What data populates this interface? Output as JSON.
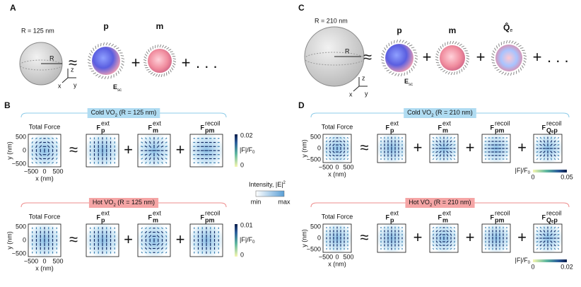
{
  "A": {
    "label": "A",
    "radius": "R = 125 nm",
    "R": "R",
    "approx": "≈",
    "plus": "+",
    "ellipsis": ". . .",
    "axes": {
      "z": "z",
      "x": "x",
      "y": "y"
    },
    "multipoles": [
      "p",
      "m"
    ],
    "field": {
      "symbol": "E",
      "sub": "sc"
    }
  },
  "C": {
    "label": "C",
    "radius": "R = 210 nm",
    "R": "R",
    "approx": "≈",
    "plus": "+",
    "ellipsis": ". . .",
    "axes": {
      "z": "z",
      "x": "x",
      "y": "y"
    },
    "multipoles": [
      "p",
      "m"
    ],
    "field": {
      "symbol": "E",
      "sub": "sc"
    },
    "quadrupole": {
      "symbol": "Q̂",
      "sub": "e"
    }
  },
  "B": {
    "label": "B",
    "F": "F",
    "approx": "≈",
    "plus": "+",
    "ylabel": "y (nm)",
    "xlabel": "x (nm)",
    "yticks": [
      "500",
      "0",
      "−500"
    ],
    "xticks": [
      "−500",
      "0",
      "500"
    ],
    "intensity": {
      "label": "Intensity, |E|",
      "sup": "2",
      "min": "min",
      "max": "max"
    },
    "rows": [
      {
        "state": {
          "text": "Cold VO",
          "sub": "2",
          "suffix": " (R = 125 nm)"
        },
        "total": "Total Force",
        "terms": [
          {
            "sup": "ext",
            "sub": "p"
          },
          {
            "sup": "ext",
            "sub": "m"
          },
          {
            "sup": "recoil",
            "sub": "pm"
          }
        ],
        "colorbar": {
          "max": "0.02",
          "min": "0",
          "label": "|F|/F",
          "label_sub": "0"
        }
      },
      {
        "state": {
          "text": "Hot VO",
          "sub": "2",
          "suffix": " (R = 125 nm)"
        },
        "total": "Total Force",
        "terms": [
          {
            "sup": "ext",
            "sub": "p"
          },
          {
            "sup": "ext",
            "sub": "m"
          },
          {
            "sup": "recoil",
            "sub": "pm"
          }
        ],
        "colorbar": {
          "max": "0.01",
          "min": "0",
          "label": "|F|/F",
          "label_sub": "0"
        }
      }
    ]
  },
  "D": {
    "label": "D",
    "F": "F",
    "approx": "≈",
    "plus": "+",
    "ylabel": "y (nm)",
    "xlabel": "x (nm)",
    "yticks": [
      "500",
      "0",
      "−500"
    ],
    "xticks": [
      "−500",
      "0",
      "500"
    ],
    "rows": [
      {
        "state": {
          "text": "Cold VO",
          "sub": "2",
          "suffix": " (R = 210 nm)"
        },
        "total": "Total Force",
        "terms": [
          {
            "sup": "ext",
            "sub": "p"
          },
          {
            "sup": "ext",
            "sub": "m"
          },
          {
            "sup": "recoil",
            "sub": "pm"
          },
          {
            "sup": "recoil",
            "sub": "Qₑp"
          }
        ],
        "colorbar": {
          "max": "0.05",
          "min": "0",
          "label": "|F|/F",
          "label_sub": "0"
        }
      },
      {
        "state": {
          "text": "Hot VO",
          "sub": "2",
          "suffix": " (R = 210 nm)"
        },
        "total": "Total Force",
        "terms": [
          {
            "sup": "ext",
            "sub": "p"
          },
          {
            "sup": "ext",
            "sub": "m"
          },
          {
            "sup": "recoil",
            "sub": "pm"
          },
          {
            "sup": "recoil",
            "sub": "Qₑp"
          }
        ],
        "colorbar": {
          "max": "0.02",
          "min": "0",
          "label": "|F|/F",
          "label_sub": "0"
        }
      }
    ]
  }
}
